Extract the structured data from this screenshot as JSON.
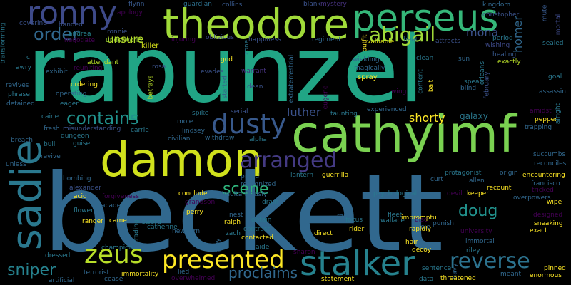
{
  "palette": {
    "background": "#000000",
    "dark_purple": "#440154",
    "indigo": "#46327e",
    "blue": "#365c8d",
    "steel": "#277f8e",
    "teal": "#1fa187",
    "green": "#4ac16d",
    "lime": "#a0da39",
    "yellow": "#fde725"
  },
  "words": [
    {
      "text": "beckett",
      "color": "#31688e"
    },
    {
      "text": "rapunzel",
      "color": "#21a585"
    },
    {
      "text": "cathyimf",
      "color": "#7ad151"
    },
    {
      "text": "damon",
      "color": "#d0e11c"
    },
    {
      "text": "theodore",
      "color": "#a0da39"
    },
    {
      "text": "perseus",
      "color": "#35b779"
    },
    {
      "text": "ronny",
      "color": "#3e4a89"
    },
    {
      "text": "sadie",
      "color": "#2a788e"
    },
    {
      "text": "stalker",
      "color": "#26828e"
    },
    {
      "text": "dusty",
      "color": "#38598c"
    },
    {
      "text": "zeus",
      "color": "#b8de29"
    },
    {
      "text": "presented",
      "color": "#fde725"
    },
    {
      "text": "arranged",
      "color": "#443a83"
    },
    {
      "text": "reverse",
      "color": "#2c728e"
    },
    {
      "text": "abigail",
      "color": "#a0da39"
    },
    {
      "text": "order",
      "color": "#31688e"
    },
    {
      "text": "contains",
      "color": "#21918c"
    },
    {
      "text": "scene",
      "color": "#2fb47c"
    },
    {
      "text": "doug",
      "color": "#21918c"
    },
    {
      "text": "sniper",
      "color": "#26828e"
    },
    {
      "text": "proclaims",
      "color": "#31688e"
    },
    {
      "text": "luther",
      "color": "#3b528b"
    },
    {
      "text": "mona",
      "color": "#3b528b"
    },
    {
      "text": "homer",
      "color": "#31688e"
    },
    {
      "text": "unsure",
      "color": "#b8de29"
    },
    {
      "text": "shorty",
      "color": "#fde725"
    },
    {
      "text": "galaxy",
      "color": "#2a788e"
    },
    {
      "text": "killer",
      "color": "#d8e219"
    },
    {
      "text": "andrea",
      "color": "#26828e"
    },
    {
      "text": "underworld",
      "color": "#a5db36"
    },
    {
      "text": "flynn",
      "color": "#38598c"
    },
    {
      "text": "apology",
      "color": "#440154"
    },
    {
      "text": "ronnie",
      "color": "#3b528b"
    },
    {
      "text": "injuring",
      "color": "#440154"
    },
    {
      "text": "oblivious",
      "color": "#3e4a89"
    },
    {
      "text": "guardian",
      "color": "#2d708e"
    },
    {
      "text": "collins",
      "color": "#38598c"
    },
    {
      "text": "blank",
      "color": "#3b528b"
    },
    {
      "text": "mystery",
      "color": "#46327e"
    },
    {
      "text": "kingdom",
      "color": "#31688e"
    },
    {
      "text": "christopher",
      "color": "#3b528b"
    },
    {
      "text": "happiness",
      "color": "#3b528b"
    },
    {
      "text": "regiment",
      "color": "#31688e"
    },
    {
      "text": "valuable",
      "color": "#d8e219"
    },
    {
      "text": "heat",
      "color": "#2a788e"
    },
    {
      "text": "attracts",
      "color": "#3b528b"
    },
    {
      "text": "wishing",
      "color": "#3e4a89"
    },
    {
      "text": "sealed",
      "color": "#2a788e"
    },
    {
      "text": "healing",
      "color": "#38598c"
    },
    {
      "text": "exactly",
      "color": "#b8de29"
    },
    {
      "text": "goal",
      "color": "#2a788e"
    },
    {
      "text": "assassin",
      "color": "#31688e"
    },
    {
      "text": "period",
      "color": "#2a788e"
    },
    {
      "text": "mute",
      "color": "#38598c"
    },
    {
      "text": "mortal",
      "color": "#3e4a89"
    },
    {
      "text": "god",
      "color": "#fde725"
    },
    {
      "text": "attendant",
      "color": "#b8de29"
    },
    {
      "text": "rosa",
      "color": "#3b528b"
    },
    {
      "text": "evades",
      "color": "#3b528b"
    },
    {
      "text": "betrays",
      "color": "#b8de29"
    },
    {
      "text": "warrant",
      "color": "#46327e"
    },
    {
      "text": "magically",
      "color": "#31688e"
    },
    {
      "text": "wielding",
      "color": "#31688e"
    },
    {
      "text": "spray",
      "color": "#fde725"
    },
    {
      "text": "clean",
      "color": "#2a788e"
    },
    {
      "text": "sun",
      "color": "#31688e"
    },
    {
      "text": "spear",
      "color": "#2a788e"
    },
    {
      "text": "blind",
      "color": "#31688e"
    },
    {
      "text": "bait",
      "color": "#fde725"
    },
    {
      "text": "wing",
      "color": "#440154"
    },
    {
      "text": "eager",
      "color": "#2a788e"
    },
    {
      "text": "operating",
      "color": "#31688e"
    },
    {
      "text": "ordering",
      "color": "#fde725"
    },
    {
      "text": "exhibit",
      "color": "#31688e"
    },
    {
      "text": "reuniting",
      "color": "#440154"
    },
    {
      "text": "phrase",
      "color": "#2a788e"
    },
    {
      "text": "revives",
      "color": "#31688e"
    },
    {
      "text": "detained",
      "color": "#31688e"
    },
    {
      "text": "awry",
      "color": "#2a788e"
    },
    {
      "text": "c",
      "color": "#2a788e"
    },
    {
      "text": "handed",
      "color": "#3b528b"
    },
    {
      "text": "covering",
      "color": "#3b528b"
    },
    {
      "text": "negotiate",
      "color": "#440154"
    },
    {
      "text": "transforming",
      "color": "#2a788e"
    },
    {
      "text": "caine",
      "color": "#2a788e"
    },
    {
      "text": "fresh",
      "color": "#31688e"
    },
    {
      "text": "breach",
      "color": "#31688e"
    },
    {
      "text": "bull",
      "color": "#2a788e"
    },
    {
      "text": "revive",
      "color": "#31688e"
    },
    {
      "text": "unless",
      "color": "#31688e"
    },
    {
      "text": "bombing",
      "color": "#31688e"
    },
    {
      "text": "alexander",
      "color": "#3b528b"
    },
    {
      "text": "acid",
      "color": "#fde725"
    },
    {
      "text": "forgiveness",
      "color": "#440154"
    },
    {
      "text": "academy",
      "color": "#31688e"
    },
    {
      "text": "came",
      "color": "#fde725"
    },
    {
      "text": "sword",
      "color": "#2a788e"
    },
    {
      "text": "misunderstanding",
      "color": "#3b528b"
    },
    {
      "text": "dungeon",
      "color": "#2a788e"
    },
    {
      "text": "guise",
      "color": "#2a788e"
    },
    {
      "text": "carrie",
      "color": "#2a788e"
    },
    {
      "text": "spike",
      "color": "#2a788e"
    },
    {
      "text": "mole",
      "color": "#31688e"
    },
    {
      "text": "lindsey",
      "color": "#31688e"
    },
    {
      "text": "civilian",
      "color": "#31688e"
    },
    {
      "text": "withdraw",
      "color": "#31688e"
    },
    {
      "text": "serial",
      "color": "#3b528b"
    },
    {
      "text": "alpha",
      "color": "#2a788e"
    },
    {
      "text": "dean",
      "color": "#3b528b"
    },
    {
      "text": "started",
      "color": "#3b528b"
    },
    {
      "text": "extraterrestrial",
      "color": "#31688e"
    },
    {
      "text": "eugene",
      "color": "#440154"
    },
    {
      "text": "zone",
      "color": "#2a788e"
    },
    {
      "text": "taunting",
      "color": "#2a788e"
    },
    {
      "text": "experienced",
      "color": "#31688e"
    },
    {
      "text": "content",
      "color": "#2a788e"
    },
    {
      "text": "outfit",
      "color": "#fde725"
    },
    {
      "text": "conclude",
      "color": "#fde725"
    },
    {
      "text": "simultaneously",
      "color": "#31688e"
    },
    {
      "text": "proud",
      "color": "#31688e"
    },
    {
      "text": "recognized",
      "color": "#31688e"
    },
    {
      "text": "drain",
      "color": "#2a788e"
    },
    {
      "text": "lantern",
      "color": "#2a788e"
    },
    {
      "text": "guerrilla",
      "color": "#fde725"
    },
    {
      "text": "psychological",
      "color": "#2a788e"
    },
    {
      "text": "curt",
      "color": "#31688e"
    },
    {
      "text": "protagonist",
      "color": "#2a788e"
    },
    {
      "text": "allen",
      "color": "#31688e"
    },
    {
      "text": "devil",
      "color": "#440154"
    },
    {
      "text": "keeper",
      "color": "#fde725"
    },
    {
      "text": "origin",
      "color": "#31688e"
    },
    {
      "text": "encountering",
      "color": "#fde725"
    },
    {
      "text": "francisco",
      "color": "#31688e"
    },
    {
      "text": "tricked",
      "color": "#440154"
    },
    {
      "text": "overpowers",
      "color": "#31688e"
    },
    {
      "text": "reconciles",
      "color": "#31688e"
    },
    {
      "text": "succumbs",
      "color": "#31688e"
    },
    {
      "text": "trapping",
      "color": "#31688e"
    },
    {
      "text": "pepper",
      "color": "#fde725"
    },
    {
      "text": "orleans",
      "color": "#2a788e"
    },
    {
      "text": "february",
      "color": "#3b528b"
    },
    {
      "text": "alright",
      "color": "#2a788e"
    },
    {
      "text": "amidst",
      "color": "#440154"
    },
    {
      "text": "grandson",
      "color": "#440154"
    },
    {
      "text": "perry",
      "color": "#fde725"
    },
    {
      "text": "nest",
      "color": "#31688e"
    },
    {
      "text": "obtain",
      "color": "#2a788e"
    },
    {
      "text": "ralph",
      "color": "#fde725"
    },
    {
      "text": "contrast",
      "color": "#2a788e"
    },
    {
      "text": "contacted",
      "color": "#fde725"
    },
    {
      "text": "ram",
      "color": "#31688e"
    },
    {
      "text": "fleet",
      "color": "#2a788e"
    },
    {
      "text": "impromptu",
      "color": "#fde725"
    },
    {
      "text": "jamie",
      "color": "#31688e"
    },
    {
      "text": "wallace",
      "color": "#2a788e"
    },
    {
      "text": "disc",
      "color": "#440154"
    },
    {
      "text": "punish",
      "color": "#31688e"
    },
    {
      "text": "university",
      "color": "#440154"
    },
    {
      "text": "designed",
      "color": "#440154"
    },
    {
      "text": "sneaking",
      "color": "#fde725"
    },
    {
      "text": "exact",
      "color": "#fde725"
    },
    {
      "text": "wipe",
      "color": "#fde725"
    },
    {
      "text": "recount",
      "color": "#fde725"
    },
    {
      "text": "flower",
      "color": "#2a788e"
    },
    {
      "text": "ranger",
      "color": "#fde725"
    },
    {
      "text": "trading",
      "color": "#2a788e"
    },
    {
      "text": "catherine",
      "color": "#2a788e"
    },
    {
      "text": "newborn",
      "color": "#31688e"
    },
    {
      "text": "zach",
      "color": "#2a788e"
    },
    {
      "text": "grey",
      "color": "#31688e"
    },
    {
      "text": "direct",
      "color": "#fde725"
    },
    {
      "text": "focus",
      "color": "#2a788e"
    },
    {
      "text": "rider",
      "color": "#fde725"
    },
    {
      "text": "rapidly",
      "color": "#fde725"
    },
    {
      "text": "immortal",
      "color": "#31688e"
    },
    {
      "text": "riley",
      "color": "#2a788e"
    },
    {
      "text": "champion",
      "color": "#2a788e"
    },
    {
      "text": "dressed",
      "color": "#2a788e"
    },
    {
      "text": "aide",
      "color": "#2a788e"
    },
    {
      "text": "sharon",
      "color": "#440154"
    },
    {
      "text": "hair",
      "color": "#fde725"
    },
    {
      "text": "decoy",
      "color": "#fde725"
    },
    {
      "text": "sentence",
      "color": "#2a788e"
    },
    {
      "text": "navy",
      "color": "#31688e"
    },
    {
      "text": "terrorist",
      "color": "#31688e"
    },
    {
      "text": "immortality",
      "color": "#fde725"
    },
    {
      "text": "lied",
      "color": "#31688e"
    },
    {
      "text": "overwhelmed",
      "color": "#440154"
    },
    {
      "text": "artificial",
      "color": "#31688e"
    },
    {
      "text": "cease",
      "color": "#31688e"
    },
    {
      "text": "statement",
      "color": "#fde725"
    },
    {
      "text": "data",
      "color": "#2a788e"
    },
    {
      "text": "threatened",
      "color": "#fde725"
    },
    {
      "text": "meant",
      "color": "#31688e"
    },
    {
      "text": "enormous",
      "color": "#fde725"
    },
    {
      "text": "pinned",
      "color": "#fde725"
    }
  ]
}
